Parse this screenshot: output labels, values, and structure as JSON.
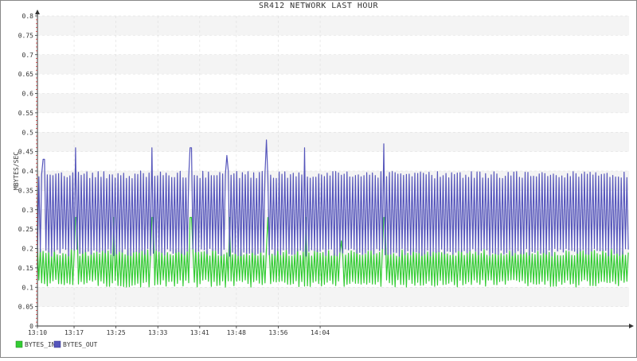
{
  "chart_data": {
    "type": "line",
    "title": "SR412 NETWORK LAST HOUR",
    "xlabel": "",
    "ylabel": "MBYTES/SEC",
    "ylim": [
      0,
      0.8
    ],
    "yticks": [
      0,
      0.05,
      0.1,
      0.15,
      0.2,
      0.25,
      0.3,
      0.35,
      0.4,
      0.45,
      0.5,
      0.55,
      0.6,
      0.65,
      0.7,
      0.75,
      0.8
    ],
    "ytick_labels": [
      "0",
      "0.05",
      "0.1",
      "0.15",
      "0.2",
      "0.25",
      "0.3",
      "0.35",
      "0.4",
      "0.45",
      "0.5",
      "0.55",
      "0.6",
      "0.65",
      "0.7",
      "0.75",
      "0.8"
    ],
    "xlim_minutes": [
      790,
      903
    ],
    "xticks_minutes": [
      790,
      797,
      805,
      813,
      821,
      828,
      836,
      844
    ],
    "xtick_labels": [
      "13:10",
      "13:17",
      "13:25",
      "13:33",
      "13:41",
      "13:48",
      "13:56",
      "14:04"
    ],
    "grid": true,
    "series": [
      {
        "name": "BYTES_IN",
        "color": "#33cc33",
        "period_minutes": 0.54,
        "low": 0.1,
        "high": 0.2,
        "spikes": [
          {
            "x": 797.4,
            "y": 0.28
          },
          {
            "x": 804.6,
            "y": 0.28
          },
          {
            "x": 812.0,
            "y": 0.28
          },
          {
            "x": 819.3,
            "y": 0.28
          },
          {
            "x": 826.7,
            "y": 0.28
          },
          {
            "x": 834.0,
            "y": 0.28
          },
          {
            "x": 841.4,
            "y": 0.28
          },
          {
            "x": 848.0,
            "y": 0.22
          },
          {
            "x": 856.3,
            "y": 0.28
          }
        ]
      },
      {
        "name": "BYTES_OUT",
        "color": "#5555bb",
        "period_minutes": 0.54,
        "low": 0.18,
        "high": 0.4,
        "spikes": [
          {
            "x": 791.2,
            "y": 0.43
          },
          {
            "x": 797.2,
            "y": 0.46
          },
          {
            "x": 811.9,
            "y": 0.46
          },
          {
            "x": 819.3,
            "y": 0.46
          },
          {
            "x": 826.2,
            "y": 0.44
          },
          {
            "x": 833.7,
            "y": 0.48
          },
          {
            "x": 841.0,
            "y": 0.46
          },
          {
            "x": 856.1,
            "y": 0.47
          }
        ]
      }
    ],
    "legend": {
      "placement": "bottom-left",
      "entries": [
        "BYTES_IN",
        "BYTES_OUT"
      ]
    }
  }
}
